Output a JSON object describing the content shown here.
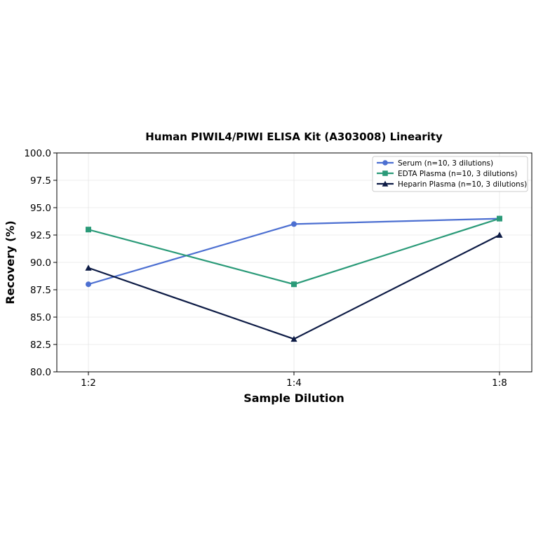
{
  "chart_data": {
    "type": "line",
    "title": "Human PIWIL4/PIWI ELISA Kit (A303008) Linearity",
    "xlabel": "Sample Dilution",
    "ylabel": "Recovery (%)",
    "categories": [
      "1:2",
      "1:4",
      "1:8"
    ],
    "ylim": [
      80.0,
      100.0
    ],
    "yticks": [
      "80.0",
      "82.5",
      "85.0",
      "87.5",
      "90.0",
      "92.5",
      "95.0",
      "97.5",
      "100.0"
    ],
    "grid": true,
    "legend_position": "top-right",
    "series": [
      {
        "name": "Serum (n=10, 3 dilutions)",
        "values": [
          88.0,
          93.5,
          94.0
        ],
        "color": "#4c6fd1",
        "marker": "circle"
      },
      {
        "name": "EDTA Plasma (n=10, 3 dilutions)",
        "values": [
          93.0,
          88.0,
          94.0
        ],
        "color": "#2a9a78",
        "marker": "square"
      },
      {
        "name": "Heparin Plasma (n=10, 3 dilutions)",
        "values": [
          89.5,
          83.0,
          92.5
        ],
        "color": "#0d1b45",
        "marker": "triangle"
      }
    ]
  }
}
